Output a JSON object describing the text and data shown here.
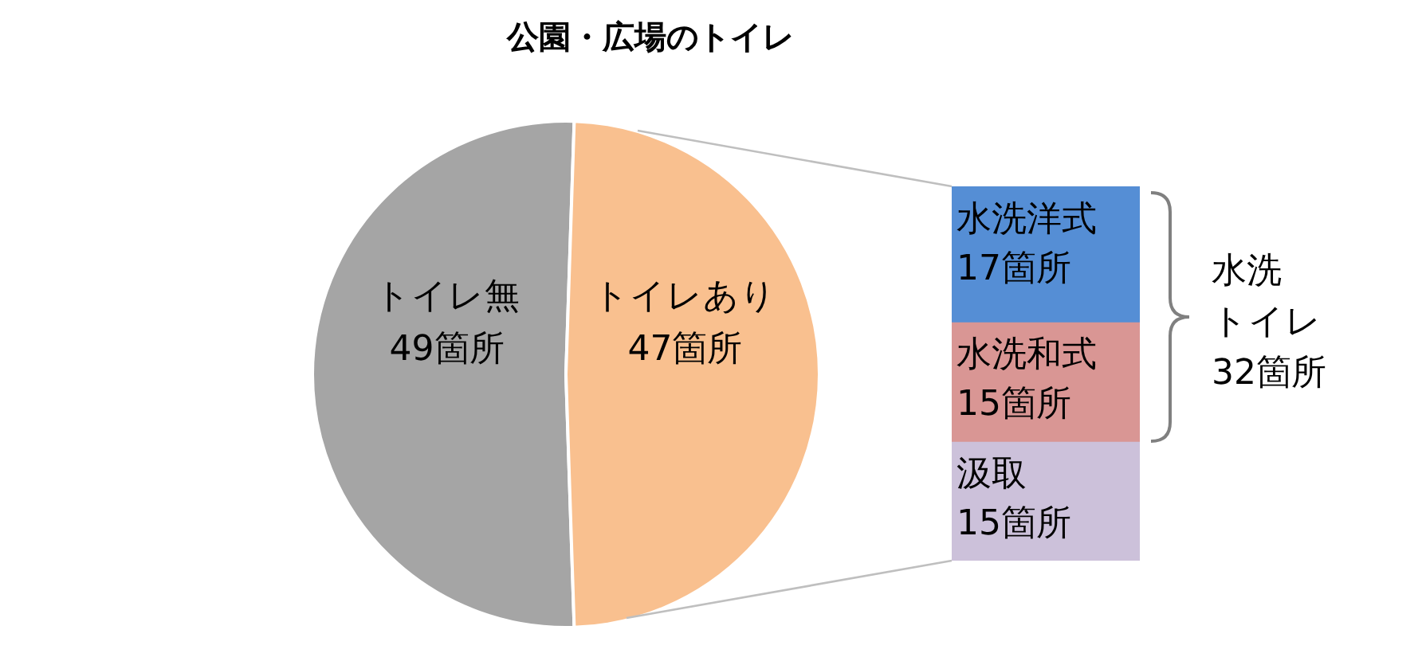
{
  "chart_data": [
    {
      "type": "pie",
      "title": "公園・広場のトイレ",
      "categories": [
        "トイレ無",
        "トイレあり"
      ],
      "values": [
        49,
        47
      ],
      "colors": [
        "#a5a5a5",
        "#f9c08f"
      ],
      "value_labels": [
        "49箇所",
        "47箇所"
      ],
      "legend": false
    },
    {
      "type": "bar",
      "stacked": true,
      "categories": [
        null
      ],
      "series": [
        {
          "name": "汲取",
          "color": "#ccc1da",
          "values": [
            15
          ],
          "value_labels": [
            "15箇所"
          ]
        },
        {
          "name": "水洗和式",
          "color": "#d99694",
          "values": [
            15
          ],
          "value_labels": [
            "15箇所"
          ]
        },
        {
          "name": "水洗洋式",
          "color": "#558ed5",
          "values": [
            17
          ],
          "value_labels": [
            "17箇所"
          ]
        }
      ],
      "tick_labels": false,
      "legend": false,
      "annotations": [
        "水洗トイレ32箇所"
      ]
    }
  ]
}
